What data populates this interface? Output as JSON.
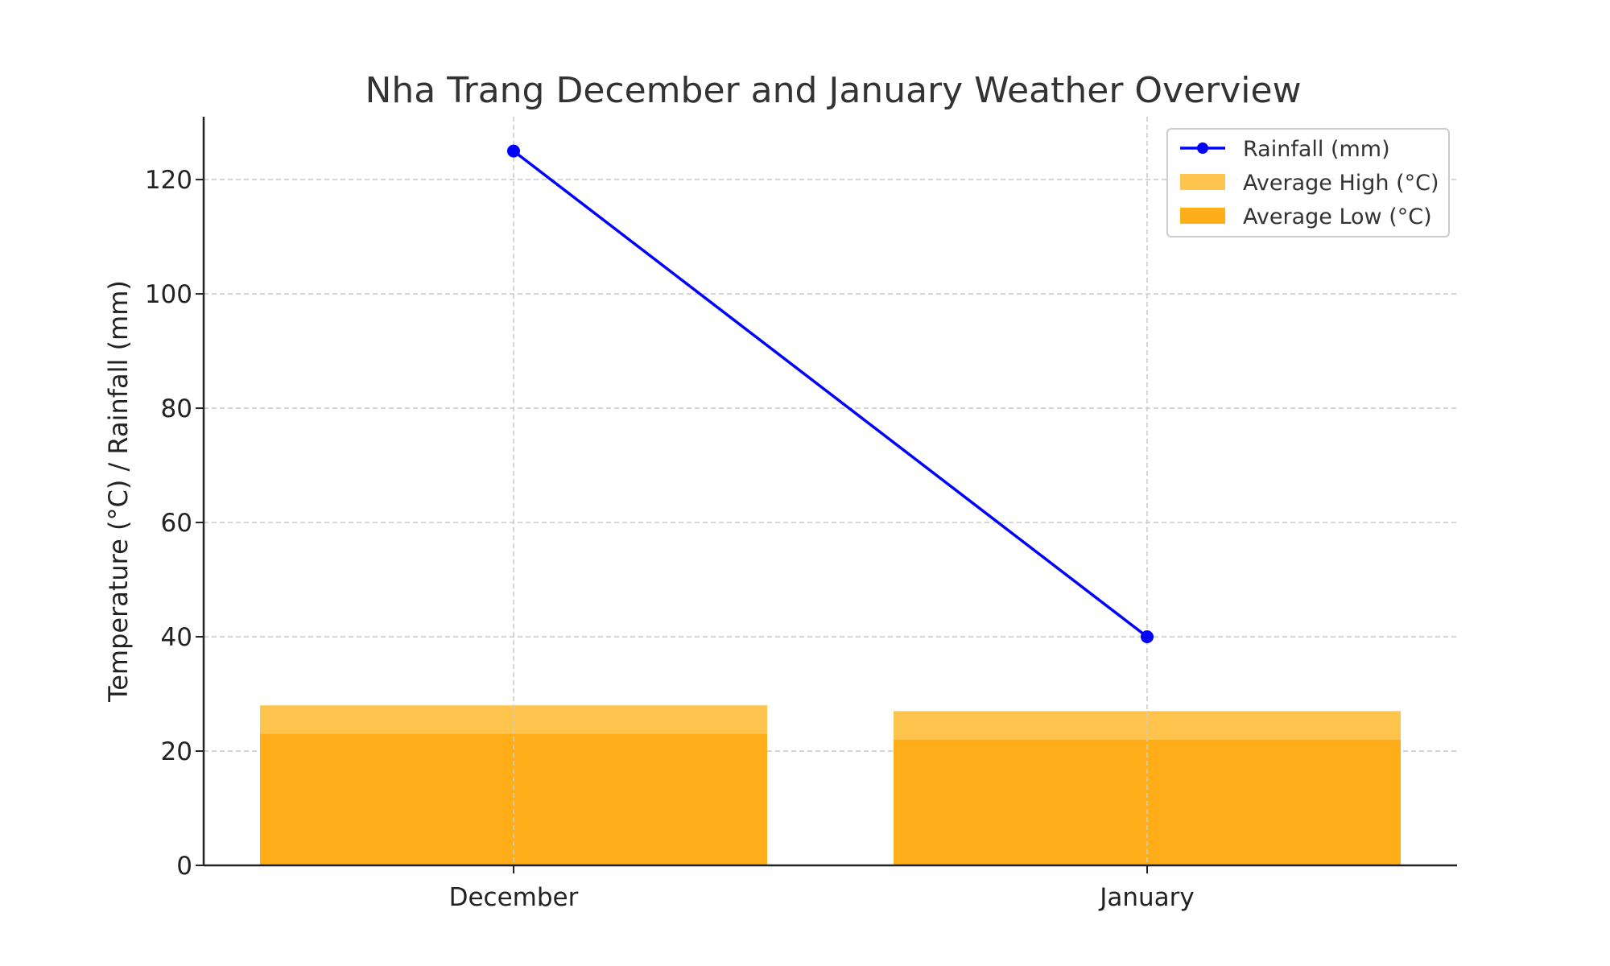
{
  "chart_data": {
    "type": "bar",
    "title": "Nha Trang December and January Weather Overview",
    "xlabel": "",
    "ylabel": "Temperature (°C) / Rainfall (mm)",
    "categories": [
      "December",
      "January"
    ],
    "ylim": [
      0,
      131
    ],
    "yticks": [
      0,
      20,
      40,
      60,
      80,
      100,
      120
    ],
    "grid": true,
    "legend_position": "top-right",
    "series": [
      {
        "name": "Rainfall (mm)",
        "kind": "line",
        "marker": "circle",
        "color": "#0000ff",
        "values": [
          125,
          40
        ]
      },
      {
        "name": "Average High (°C)",
        "kind": "bar",
        "color": "#ffc44d",
        "values": [
          28,
          27
        ]
      },
      {
        "name": "Average Low (°C)",
        "kind": "bar",
        "color": "#ffae1a",
        "values": [
          23,
          22
        ]
      }
    ],
    "legend_order": [
      "Rainfall (mm)",
      "Average High (°C)",
      "Average Low (°C)"
    ]
  }
}
